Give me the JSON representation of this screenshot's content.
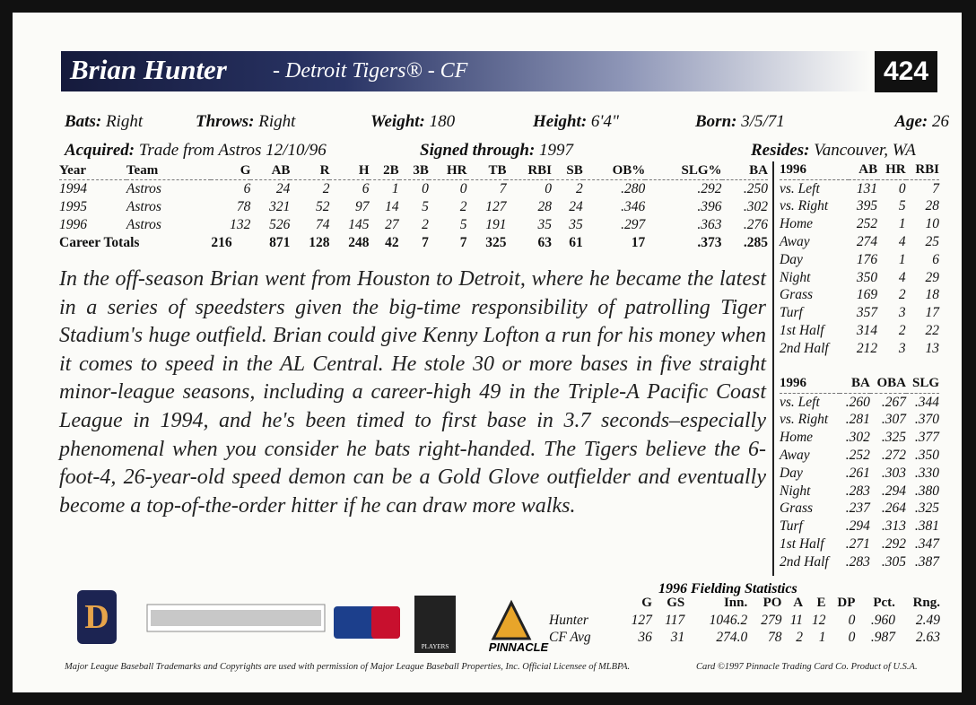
{
  "header": {
    "name": "Brian Hunter",
    "team": "- Detroit Tigers® - CF",
    "number": "424"
  },
  "bio": [
    [
      {
        "label": "Bats:",
        "value": "Right"
      },
      {
        "label": "Throws:",
        "value": "Right"
      },
      {
        "label": "Weight:",
        "value": "180"
      },
      {
        "label": "Height:",
        "value": "6'4\""
      },
      {
        "label": "Born:",
        "value": "3/5/71"
      },
      {
        "label": "Age:",
        "value": "26"
      }
    ],
    [
      {
        "label": "Acquired:",
        "value": "Trade from Astros 12/10/96"
      },
      {
        "label": "Signed through:",
        "value": "1997"
      },
      {
        "label": "Resides:",
        "value": "Vancouver, WA"
      }
    ]
  ],
  "career": {
    "headers": [
      "Year",
      "Team",
      "G",
      "AB",
      "R",
      "H",
      "2B",
      "3B",
      "HR",
      "TB",
      "RBI",
      "SB",
      "OB%",
      "SLG%",
      "BA"
    ],
    "rows": [
      [
        "1994",
        "Astros",
        "6",
        "24",
        "2",
        "6",
        "1",
        "0",
        "0",
        "7",
        "0",
        "2",
        ".280",
        ".292",
        ".250"
      ],
      [
        "1995",
        "Astros",
        "78",
        "321",
        "52",
        "97",
        "14",
        "5",
        "2",
        "127",
        "28",
        "24",
        ".346",
        ".396",
        ".302"
      ],
      [
        "1996",
        "Astros",
        "132",
        "526",
        "74",
        "145",
        "27",
        "2",
        "5",
        "191",
        "35",
        "35",
        ".297",
        ".363",
        ".276"
      ]
    ],
    "totals": [
      "Career Totals",
      "216",
      "871",
      "128",
      "248",
      "42",
      "7",
      "7",
      "325",
      "63",
      "61",
      "17",
      ".373",
      ".285"
    ]
  },
  "splits1": {
    "headers": [
      "1996",
      "AB",
      "HR",
      "RBI"
    ],
    "rows": [
      [
        "vs. Left",
        "131",
        "0",
        "7"
      ],
      [
        "vs. Right",
        "395",
        "5",
        "28"
      ],
      [
        "Home",
        "252",
        "1",
        "10"
      ],
      [
        "Away",
        "274",
        "4",
        "25"
      ],
      [
        "Day",
        "176",
        "1",
        "6"
      ],
      [
        "Night",
        "350",
        "4",
        "29"
      ],
      [
        "Grass",
        "169",
        "2",
        "18"
      ],
      [
        "Turf",
        "357",
        "3",
        "17"
      ],
      [
        "1st Half",
        "314",
        "2",
        "22"
      ],
      [
        "2nd Half",
        "212",
        "3",
        "13"
      ]
    ]
  },
  "splits2": {
    "headers": [
      "1996",
      "BA",
      "OBA",
      "SLG"
    ],
    "rows": [
      [
        "vs. Left",
        ".260",
        ".267",
        ".344"
      ],
      [
        "vs. Right",
        ".281",
        ".307",
        ".370"
      ],
      [
        "Home",
        ".302",
        ".325",
        ".377"
      ],
      [
        "Away",
        ".252",
        ".272",
        ".350"
      ],
      [
        "Day",
        ".261",
        ".303",
        ".330"
      ],
      [
        "Night",
        ".283",
        ".294",
        ".380"
      ],
      [
        "Grass",
        ".237",
        ".264",
        ".325"
      ],
      [
        "Turf",
        ".294",
        ".313",
        ".381"
      ],
      [
        "1st Half",
        ".271",
        ".292",
        ".347"
      ],
      [
        "2nd Half",
        ".283",
        ".305",
        ".387"
      ]
    ]
  },
  "story": "In the off-season Brian went from Houston to Detroit, where he became the latest in a series of speedsters given the big-time responsibility of patrolling Tiger Stadium's huge outfield. Brian could give Kenny Lofton a run for his money when it comes to speed in the AL Central. He stole 30 or more bases in five straight minor-league seasons, including a career-high 49 in the Triple-A Pacific Coast League in 1994, and he's been timed to first base in 3.7 seconds–especially phenomenal when you consider he bats right-handed. The Tigers believe the 6-foot-4, 26-year-old speed demon can be a Gold Glove outfielder and eventually become a top-of-the-order hitter if he can draw more walks.",
  "fielding": {
    "title": "1996 Fielding Statistics",
    "headers": [
      "G",
      "GS",
      "Inn.",
      "PO",
      "A",
      "E",
      "DP",
      "Pct.",
      "Rng."
    ],
    "rows": [
      [
        "Hunter",
        "127",
        "117",
        "1046.2",
        "279",
        "11",
        "12",
        "0",
        ".960",
        "2.49"
      ],
      [
        "CF Avg",
        "36",
        "31",
        "274.0",
        "78",
        "2",
        "1",
        "0",
        ".987",
        "2.63"
      ]
    ]
  },
  "logos": {
    "players": "PLAYERS",
    "pinnacle": "PINNACLE"
  },
  "footer": {
    "left": "Major League Baseball Trademarks and Copyrights are used with permission of Major League Baseball Properties, Inc. Official Licensee of MLBPA.",
    "right": "Card ©1997 Pinnacle Trading Card Co. Product of U.S.A."
  }
}
